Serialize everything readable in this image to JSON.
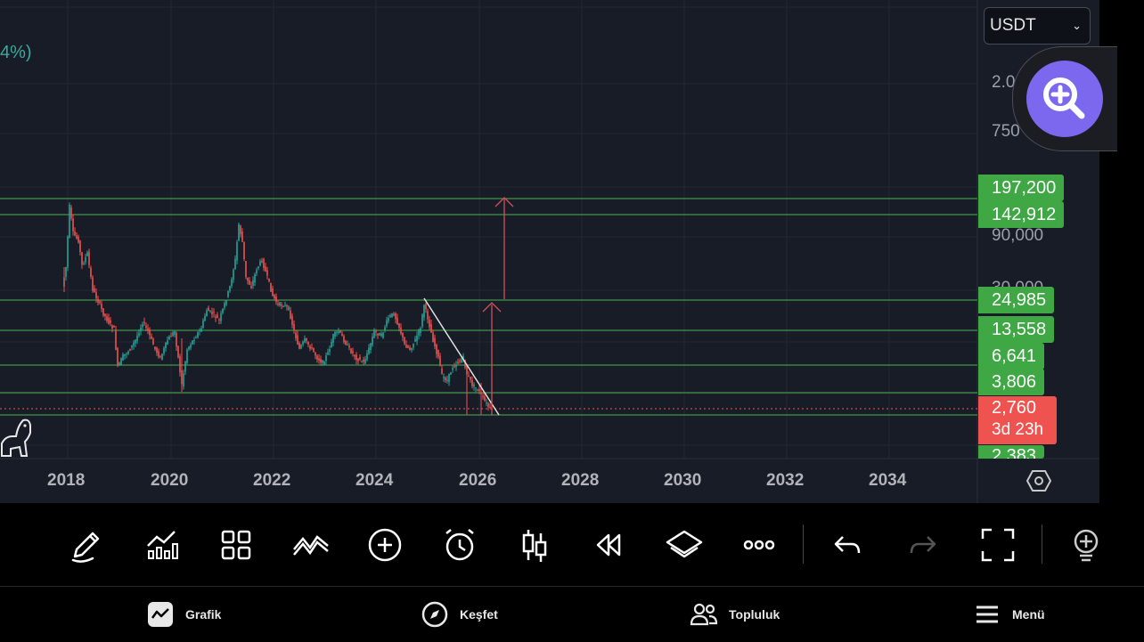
{
  "chart": {
    "percent_partial": "4%)",
    "currency": "USDT",
    "price_axis_partial": [
      "2.0",
      "750",
      "90,000",
      "30,000"
    ],
    "price_labels": [
      "197,200",
      "142,912",
      "24,985",
      "13,558",
      "6,641",
      "3,806"
    ],
    "current_price": "2,760",
    "countdown": "3d 23h",
    "bottom_price_partial": "2,383",
    "x_axis": [
      "2018",
      "2020",
      "2022",
      "2024",
      "2026",
      "2028",
      "2030",
      "2032",
      "2034"
    ],
    "colors": {
      "up": "#26a69a",
      "down": "#ef5350",
      "level_line": "#4caf50",
      "label_bg": "#3fa845",
      "zoom": "#7b68ee"
    }
  },
  "toolbar": {
    "icons": [
      "pencil-icon",
      "indicators-icon",
      "layout-icon",
      "compare-icon",
      "add-icon",
      "alert-icon",
      "chart-type-icon",
      "replay-icon",
      "layers-icon",
      "more-icon",
      "undo-icon",
      "redo-icon",
      "fullscreen-icon",
      "ideas-icon"
    ]
  },
  "nav": {
    "items": [
      {
        "label": "Grafik",
        "icon": "chart-icon"
      },
      {
        "label": "Keşfet",
        "icon": "compass-icon"
      },
      {
        "label": "Topluluk",
        "icon": "community-icon"
      },
      {
        "label": "Menü",
        "icon": "menu-icon"
      }
    ]
  }
}
